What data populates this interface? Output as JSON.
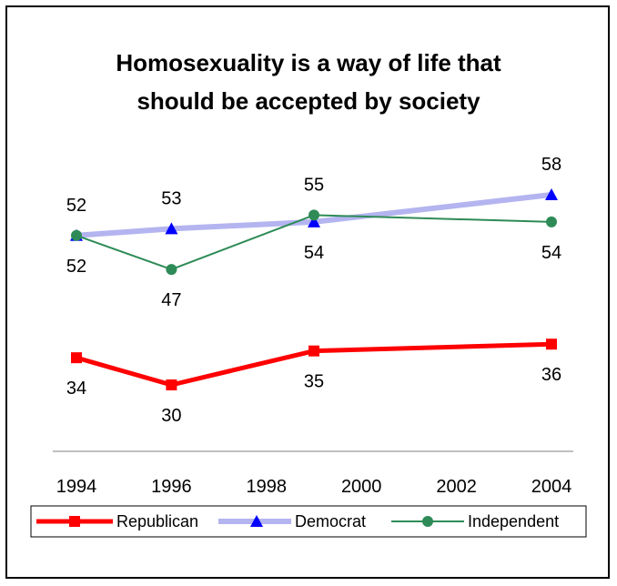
{
  "chart_data": {
    "type": "line",
    "title_lines": [
      "Homosexuality is a way of life that",
      "should be accepted by society"
    ],
    "x_ticks": [
      1994,
      1996,
      1998,
      2000,
      2002,
      2004
    ],
    "xlim": [
      1994,
      2004
    ],
    "legend_position": "bottom",
    "grid": false,
    "series": [
      {
        "name": "Republican",
        "color": "#ff0000",
        "marker": "square",
        "points": [
          {
            "x": 1994,
            "y": 34,
            "label": "34",
            "label_pos": "below"
          },
          {
            "x": 1996,
            "y": 30,
            "label": "30",
            "label_pos": "below"
          },
          {
            "x": 1999,
            "y": 35,
            "label": "35",
            "label_pos": "below"
          },
          {
            "x": 2004,
            "y": 36,
            "label": "36",
            "label_pos": "below"
          }
        ]
      },
      {
        "name": "Democrat",
        "color": "#b4b4f0",
        "marker_color": "#0000ff",
        "marker": "triangle",
        "points": [
          {
            "x": 1994,
            "y": 52,
            "label": "52",
            "label_pos": "above"
          },
          {
            "x": 1996,
            "y": 53,
            "label": "53",
            "label_pos": "above"
          },
          {
            "x": 1999,
            "y": 54,
            "label": "54",
            "label_pos": "below"
          },
          {
            "x": 2004,
            "y": 58,
            "label": "58",
            "label_pos": "above"
          }
        ]
      },
      {
        "name": "Independent",
        "color": "#2e8b57",
        "marker": "circle",
        "points": [
          {
            "x": 1994,
            "y": 52,
            "label": "52",
            "label_pos": "below"
          },
          {
            "x": 1996,
            "y": 47,
            "label": "47",
            "label_pos": "below"
          },
          {
            "x": 1999,
            "y": 55,
            "label": "55",
            "label_pos": "above"
          },
          {
            "x": 2004,
            "y": 54,
            "label": "54",
            "label_pos": "below"
          }
        ]
      }
    ]
  }
}
